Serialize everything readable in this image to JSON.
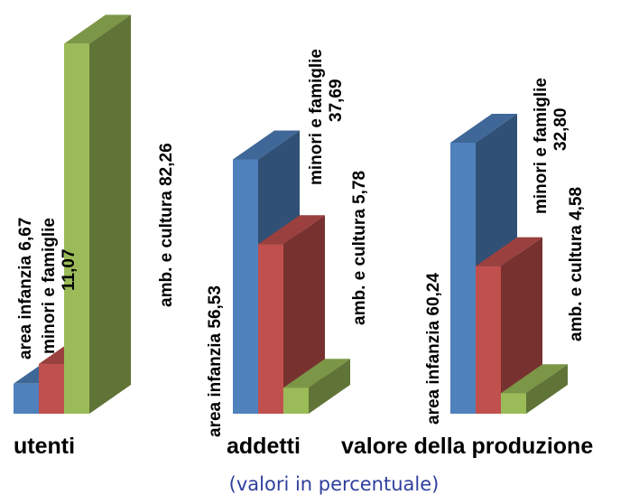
{
  "chart_data": {
    "type": "bar",
    "style": "3d-column",
    "categories": [
      "utenti",
      "addetti",
      "valore della produzione"
    ],
    "series": [
      {
        "name": "area infanzia",
        "color": "#4f81bd",
        "values": [
          6.67,
          56.53,
          60.24
        ]
      },
      {
        "name": "minori e famiglie",
        "color": "#c0504d",
        "values": [
          11.07,
          37.69,
          32.8
        ]
      },
      {
        "name": "amb. e cultura",
        "color": "#9bbb59",
        "values": [
          82.26,
          5.78,
          4.58
        ]
      }
    ],
    "data_labels": [
      [
        "area infanzia  6,67",
        "minori e famiglie 11,07",
        "amb. e cultura  82,26"
      ],
      [
        "area infanzia   56,53",
        "minori e famiglie 37,69",
        "amb. e cultura  5,78"
      ],
      [
        "area infanzia   60,24",
        "minori e famiglie 32,80",
        "amb. e cultura  4,58"
      ]
    ],
    "note": "(valori in percentuale)",
    "ylim": [
      0,
      100
    ],
    "grid": false,
    "legend": "none"
  }
}
